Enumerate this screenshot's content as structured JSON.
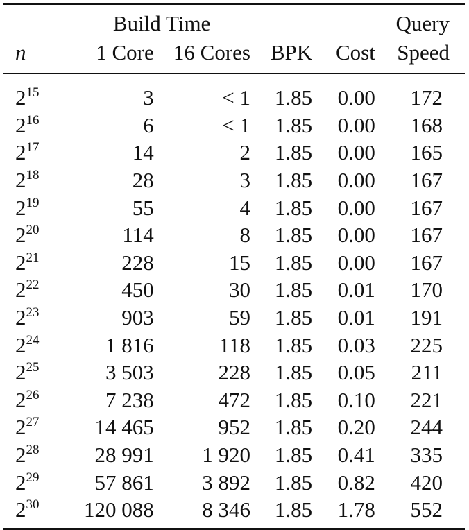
{
  "table": {
    "header": {
      "build_time": "Build Time",
      "n": "n",
      "core1": "1 Core",
      "core16": "16 Cores",
      "bpk": "BPK",
      "cost": "Cost",
      "query": "Query",
      "speed": "Speed"
    },
    "rows": [
      {
        "n_base": "2",
        "n_exp": "15",
        "core1": "3",
        "core16": "< 1",
        "bpk": "1.85",
        "cost": "0.00",
        "speed": "172"
      },
      {
        "n_base": "2",
        "n_exp": "16",
        "core1": "6",
        "core16": "< 1",
        "bpk": "1.85",
        "cost": "0.00",
        "speed": "168"
      },
      {
        "n_base": "2",
        "n_exp": "17",
        "core1": "14",
        "core16": "2",
        "bpk": "1.85",
        "cost": "0.00",
        "speed": "165"
      },
      {
        "n_base": "2",
        "n_exp": "18",
        "core1": "28",
        "core16": "3",
        "bpk": "1.85",
        "cost": "0.00",
        "speed": "167"
      },
      {
        "n_base": "2",
        "n_exp": "19",
        "core1": "55",
        "core16": "4",
        "bpk": "1.85",
        "cost": "0.00",
        "speed": "167"
      },
      {
        "n_base": "2",
        "n_exp": "20",
        "core1": "114",
        "core16": "8",
        "bpk": "1.85",
        "cost": "0.00",
        "speed": "167"
      },
      {
        "n_base": "2",
        "n_exp": "21",
        "core1": "228",
        "core16": "15",
        "bpk": "1.85",
        "cost": "0.00",
        "speed": "167"
      },
      {
        "n_base": "2",
        "n_exp": "22",
        "core1": "450",
        "core16": "30",
        "bpk": "1.85",
        "cost": "0.01",
        "speed": "170"
      },
      {
        "n_base": "2",
        "n_exp": "23",
        "core1": "903",
        "core16": "59",
        "bpk": "1.85",
        "cost": "0.01",
        "speed": "191"
      },
      {
        "n_base": "2",
        "n_exp": "24",
        "core1": "1 816",
        "core16": "118",
        "bpk": "1.85",
        "cost": "0.03",
        "speed": "225"
      },
      {
        "n_base": "2",
        "n_exp": "25",
        "core1": "3 503",
        "core16": "228",
        "bpk": "1.85",
        "cost": "0.05",
        "speed": "211"
      },
      {
        "n_base": "2",
        "n_exp": "26",
        "core1": "7 238",
        "core16": "472",
        "bpk": "1.85",
        "cost": "0.10",
        "speed": "221"
      },
      {
        "n_base": "2",
        "n_exp": "27",
        "core1": "14 465",
        "core16": "952",
        "bpk": "1.85",
        "cost": "0.20",
        "speed": "244"
      },
      {
        "n_base": "2",
        "n_exp": "28",
        "core1": "28 991",
        "core16": "1 920",
        "bpk": "1.85",
        "cost": "0.41",
        "speed": "335"
      },
      {
        "n_base": "2",
        "n_exp": "29",
        "core1": "57 861",
        "core16": "3 892",
        "bpk": "1.85",
        "cost": "0.82",
        "speed": "420"
      },
      {
        "n_base": "2",
        "n_exp": "30",
        "core1": "120 088",
        "core16": "8 346",
        "bpk": "1.85",
        "cost": "1.78",
        "speed": "552"
      }
    ]
  }
}
